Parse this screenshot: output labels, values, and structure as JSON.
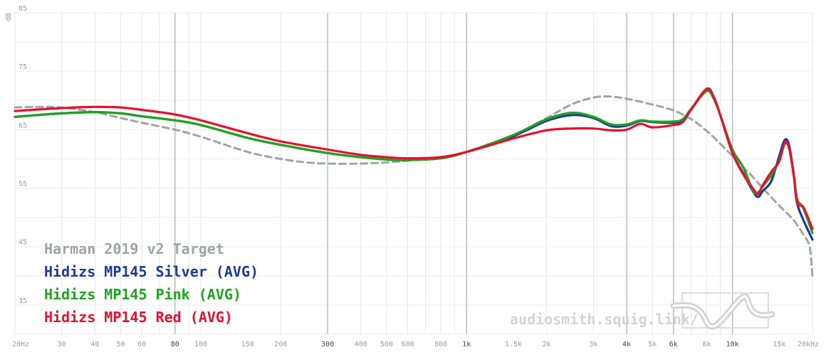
{
  "chart_data": {
    "type": "line",
    "ylabel": "dB",
    "x_scale": "log",
    "xlim": [
      20,
      20000
    ],
    "ylim": [
      30,
      85
    ],
    "grid": true,
    "legend_position": "bottom-left",
    "x_ticks": [
      {
        "value": 20,
        "label": "20Hz",
        "major": false
      },
      {
        "value": 30,
        "label": "30",
        "major": false
      },
      {
        "value": 40,
        "label": "40",
        "major": false
      },
      {
        "value": 50,
        "label": "50",
        "major": false
      },
      {
        "value": 60,
        "label": "60",
        "major": false
      },
      {
        "value": 80,
        "label": "80",
        "major": true
      },
      {
        "value": 100,
        "label": "100",
        "major": false
      },
      {
        "value": 150,
        "label": "150",
        "major": false
      },
      {
        "value": 200,
        "label": "200",
        "major": false
      },
      {
        "value": 300,
        "label": "300",
        "major": true
      },
      {
        "value": 400,
        "label": "400",
        "major": false
      },
      {
        "value": 500,
        "label": "500",
        "major": false
      },
      {
        "value": 600,
        "label": "600",
        "major": false
      },
      {
        "value": 800,
        "label": "800",
        "major": false
      },
      {
        "value": 1000,
        "label": "1k",
        "major": true
      },
      {
        "value": 1500,
        "label": "1.5k",
        "major": false
      },
      {
        "value": 2000,
        "label": "2k",
        "major": false
      },
      {
        "value": 3000,
        "label": "3k",
        "major": false
      },
      {
        "value": 4000,
        "label": "4k",
        "major": true
      },
      {
        "value": 5000,
        "label": "5k",
        "major": false
      },
      {
        "value": 6000,
        "label": "6k",
        "major": true
      },
      {
        "value": 8000,
        "label": "8k",
        "major": false
      },
      {
        "value": 10000,
        "label": "10k",
        "major": true
      },
      {
        "value": 15000,
        "label": "15k",
        "major": false
      },
      {
        "value": 20000,
        "label": "20kHz",
        "major": false
      }
    ],
    "y_ticks": [
      {
        "value": 85,
        "label": "85"
      },
      {
        "value": 75,
        "label": "75"
      },
      {
        "value": 65,
        "label": "65"
      },
      {
        "value": 55,
        "label": "55"
      },
      {
        "value": 45,
        "label": "45"
      },
      {
        "value": 35,
        "label": "35"
      }
    ],
    "series": [
      {
        "name": "Harman 2019 v2 Target",
        "color": "#a0a4a4",
        "dashed": true,
        "points": [
          [
            20,
            68.8
          ],
          [
            25,
            68.9
          ],
          [
            30,
            68.8
          ],
          [
            40,
            68.0
          ],
          [
            50,
            67.0
          ],
          [
            60,
            66.2
          ],
          [
            80,
            65.0
          ],
          [
            100,
            63.8
          ],
          [
            150,
            61.2
          ],
          [
            200,
            60.0
          ],
          [
            250,
            59.4
          ],
          [
            300,
            59.2
          ],
          [
            400,
            59.2
          ],
          [
            500,
            59.4
          ],
          [
            600,
            59.7
          ],
          [
            800,
            60.3
          ],
          [
            1000,
            61.2
          ],
          [
            1200,
            62.2
          ],
          [
            1500,
            64.0
          ],
          [
            2000,
            67.0
          ],
          [
            2500,
            69.4
          ],
          [
            3000,
            70.5
          ],
          [
            3300,
            70.7
          ],
          [
            3600,
            70.6
          ],
          [
            4000,
            70.3
          ],
          [
            5000,
            69.3
          ],
          [
            6000,
            68.3
          ],
          [
            7000,
            66.8
          ],
          [
            8000,
            64.8
          ],
          [
            9000,
            62.6
          ],
          [
            10000,
            60.5
          ],
          [
            11000,
            58.5
          ],
          [
            12000,
            56.8
          ],
          [
            13000,
            55.0
          ],
          [
            15000,
            52.0
          ],
          [
            17000,
            49.5
          ],
          [
            18500,
            47.0
          ],
          [
            19500,
            45.0
          ],
          [
            20000,
            40.0
          ]
        ]
      },
      {
        "name": "Hidizs MP145 Silver (AVG)",
        "color": "#1a3a9c",
        "dashed": false,
        "points": [
          [
            20,
            67.2
          ],
          [
            30,
            67.8
          ],
          [
            40,
            68.0
          ],
          [
            50,
            67.8
          ],
          [
            60,
            67.3
          ],
          [
            80,
            66.6
          ],
          [
            100,
            65.8
          ],
          [
            150,
            63.6
          ],
          [
            200,
            62.4
          ],
          [
            300,
            61.0
          ],
          [
            400,
            60.3
          ],
          [
            500,
            59.9
          ],
          [
            600,
            59.8
          ],
          [
            800,
            60.1
          ],
          [
            1000,
            61.2
          ],
          [
            1500,
            63.9
          ],
          [
            2000,
            66.5
          ],
          [
            2500,
            67.5
          ],
          [
            3000,
            67.0
          ],
          [
            3500,
            65.6
          ],
          [
            4000,
            65.7
          ],
          [
            4500,
            66.5
          ],
          [
            5000,
            66.3
          ],
          [
            6000,
            66.2
          ],
          [
            6500,
            66.6
          ],
          [
            7000,
            68.5
          ],
          [
            8000,
            71.8
          ],
          [
            8500,
            70.5
          ],
          [
            9000,
            67.5
          ],
          [
            10000,
            61.0
          ],
          [
            11000,
            57.5
          ],
          [
            12000,
            54.3
          ],
          [
            12500,
            53.5
          ],
          [
            13000,
            54.5
          ],
          [
            14000,
            56.2
          ],
          [
            15000,
            60.5
          ],
          [
            15700,
            63.2
          ],
          [
            16300,
            62.5
          ],
          [
            17000,
            57.5
          ],
          [
            17500,
            52.5
          ],
          [
            18500,
            49.5
          ],
          [
            20000,
            46.2
          ]
        ]
      },
      {
        "name": "Hidizs MP145 Pink (AVG)",
        "color": "#1ea41e",
        "dashed": false,
        "points": [
          [
            20,
            67.2
          ],
          [
            30,
            67.8
          ],
          [
            40,
            68.0
          ],
          [
            50,
            67.8
          ],
          [
            60,
            67.3
          ],
          [
            80,
            66.6
          ],
          [
            100,
            65.8
          ],
          [
            150,
            63.6
          ],
          [
            200,
            62.4
          ],
          [
            300,
            61.0
          ],
          [
            400,
            60.3
          ],
          [
            500,
            59.9
          ],
          [
            600,
            59.8
          ],
          [
            800,
            60.1
          ],
          [
            1000,
            61.2
          ],
          [
            1500,
            64.1
          ],
          [
            2000,
            66.8
          ],
          [
            2500,
            67.9
          ],
          [
            3000,
            67.2
          ],
          [
            3500,
            65.9
          ],
          [
            4000,
            65.9
          ],
          [
            4500,
            66.6
          ],
          [
            5000,
            66.4
          ],
          [
            6000,
            66.4
          ],
          [
            6500,
            66.8
          ],
          [
            7000,
            68.6
          ],
          [
            8000,
            71.6
          ],
          [
            8500,
            70.3
          ],
          [
            9000,
            67.5
          ],
          [
            10000,
            61.6
          ],
          [
            11000,
            58.5
          ],
          [
            12000,
            54.4
          ],
          [
            12500,
            54.3
          ],
          [
            13000,
            55.3
          ],
          [
            14000,
            57.2
          ],
          [
            15000,
            59.8
          ],
          [
            15700,
            62.5
          ],
          [
            16300,
            62.0
          ],
          [
            17000,
            57.5
          ],
          [
            17500,
            53.2
          ],
          [
            18500,
            51.5
          ],
          [
            20000,
            47.3
          ]
        ]
      },
      {
        "name": "Hidizs MP145 Red (AVG)",
        "color": "#e8112d",
        "dashed": false,
        "points": [
          [
            20,
            68.2
          ],
          [
            30,
            68.7
          ],
          [
            40,
            68.9
          ],
          [
            50,
            68.8
          ],
          [
            60,
            68.4
          ],
          [
            80,
            67.6
          ],
          [
            100,
            66.6
          ],
          [
            150,
            64.4
          ],
          [
            200,
            63.0
          ],
          [
            300,
            61.6
          ],
          [
            400,
            60.7
          ],
          [
            500,
            60.3
          ],
          [
            600,
            60.1
          ],
          [
            800,
            60.3
          ],
          [
            1000,
            61.2
          ],
          [
            1500,
            63.5
          ],
          [
            2000,
            64.9
          ],
          [
            2500,
            65.2
          ],
          [
            3000,
            65.2
          ],
          [
            3500,
            64.9
          ],
          [
            4000,
            65.0
          ],
          [
            4500,
            66.0
          ],
          [
            5000,
            65.4
          ],
          [
            6000,
            65.8
          ],
          [
            6500,
            66.3
          ],
          [
            7000,
            68.5
          ],
          [
            8000,
            72.0
          ],
          [
            8500,
            70.6
          ],
          [
            9000,
            67.5
          ],
          [
            10000,
            61.0
          ],
          [
            11000,
            57.3
          ],
          [
            12000,
            54.8
          ],
          [
            12500,
            54.0
          ],
          [
            13000,
            55.5
          ],
          [
            14000,
            57.8
          ],
          [
            15000,
            59.6
          ],
          [
            15700,
            62.8
          ],
          [
            16300,
            62.0
          ],
          [
            17000,
            57.2
          ],
          [
            17500,
            52.5
          ],
          [
            18500,
            51.7
          ],
          [
            20000,
            48.0
          ]
        ]
      }
    ]
  },
  "watermark": {
    "text": "audiosmith.squig.link/",
    "logo": "squiglink-wave-logo"
  }
}
